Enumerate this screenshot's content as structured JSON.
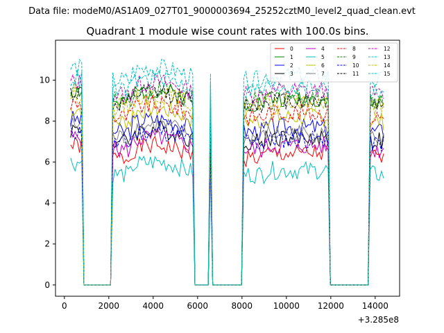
{
  "figure": {
    "suptitle": "Data file: modeM0/AS1A09_027T01_9000003694_25252cztM0_level2_quad_clean.evt"
  },
  "chart_data": {
    "type": "line",
    "title": "Quadrant 1 module wise count rates with 100.0s bins.",
    "xlabel": "",
    "ylabel": "",
    "x_offset_label": "+3.285e8",
    "xlim": [
      -400,
      15100
    ],
    "ylim": [
      -0.55,
      11.95
    ],
    "xticks": [
      0,
      2000,
      4000,
      6000,
      8000,
      10000,
      12000,
      14000
    ],
    "yticks": [
      0,
      2,
      4,
      6,
      8,
      10
    ],
    "legend_position": "top-right",
    "segments": [
      [
        280,
        850
      ],
      [
        2150,
        5850
      ],
      [
        6550,
        6650
      ],
      [
        8050,
        11950
      ],
      [
        13750,
        14400
      ]
    ],
    "series": [
      {
        "name": "0",
        "color": "#ff0000",
        "style": "solid",
        "level": 6.2,
        "seed": 1
      },
      {
        "name": "1",
        "color": "#008000",
        "style": "solid",
        "level": 8.9,
        "seed": 2
      },
      {
        "name": "2",
        "color": "#0000ff",
        "style": "solid",
        "level": 7.5,
        "seed": 3
      },
      {
        "name": "3",
        "color": "#000000",
        "style": "solid",
        "level": 7.0,
        "seed": 4
      },
      {
        "name": "4",
        "color": "#bf00bf",
        "style": "solid",
        "level": 6.6,
        "seed": 5
      },
      {
        "name": "5",
        "color": "#00bfbf",
        "style": "solid",
        "level": 5.4,
        "seed": 6
      },
      {
        "name": "6",
        "color": "#bfbf00",
        "style": "solid",
        "level": 8.0,
        "seed": 7
      },
      {
        "name": "7",
        "color": "#808080",
        "style": "solid",
        "level": 7.2,
        "seed": 8
      },
      {
        "name": "8",
        "color": "#ff0000",
        "style": "dashed",
        "level": 8.2,
        "seed": 9
      },
      {
        "name": "9",
        "color": "#008000",
        "style": "dashed",
        "level": 9.0,
        "seed": 10
      },
      {
        "name": "10",
        "color": "#0000ff",
        "style": "dashed",
        "level": 6.9,
        "seed": 11
      },
      {
        "name": "11",
        "color": "#000000",
        "style": "dashed",
        "level": 8.8,
        "seed": 12
      },
      {
        "name": "12",
        "color": "#bf00bf",
        "style": "dashed",
        "level": 9.3,
        "seed": 13
      },
      {
        "name": "13",
        "color": "#00bfbf",
        "style": "dashed",
        "level": 10.0,
        "seed": 14
      },
      {
        "name": "14",
        "color": "#bfbf00",
        "style": "dashed",
        "level": 8.7,
        "seed": 15
      },
      {
        "name": "15",
        "color": "#00bfbf",
        "style": "dashed",
        "level": 9.5,
        "seed": 16
      }
    ]
  }
}
